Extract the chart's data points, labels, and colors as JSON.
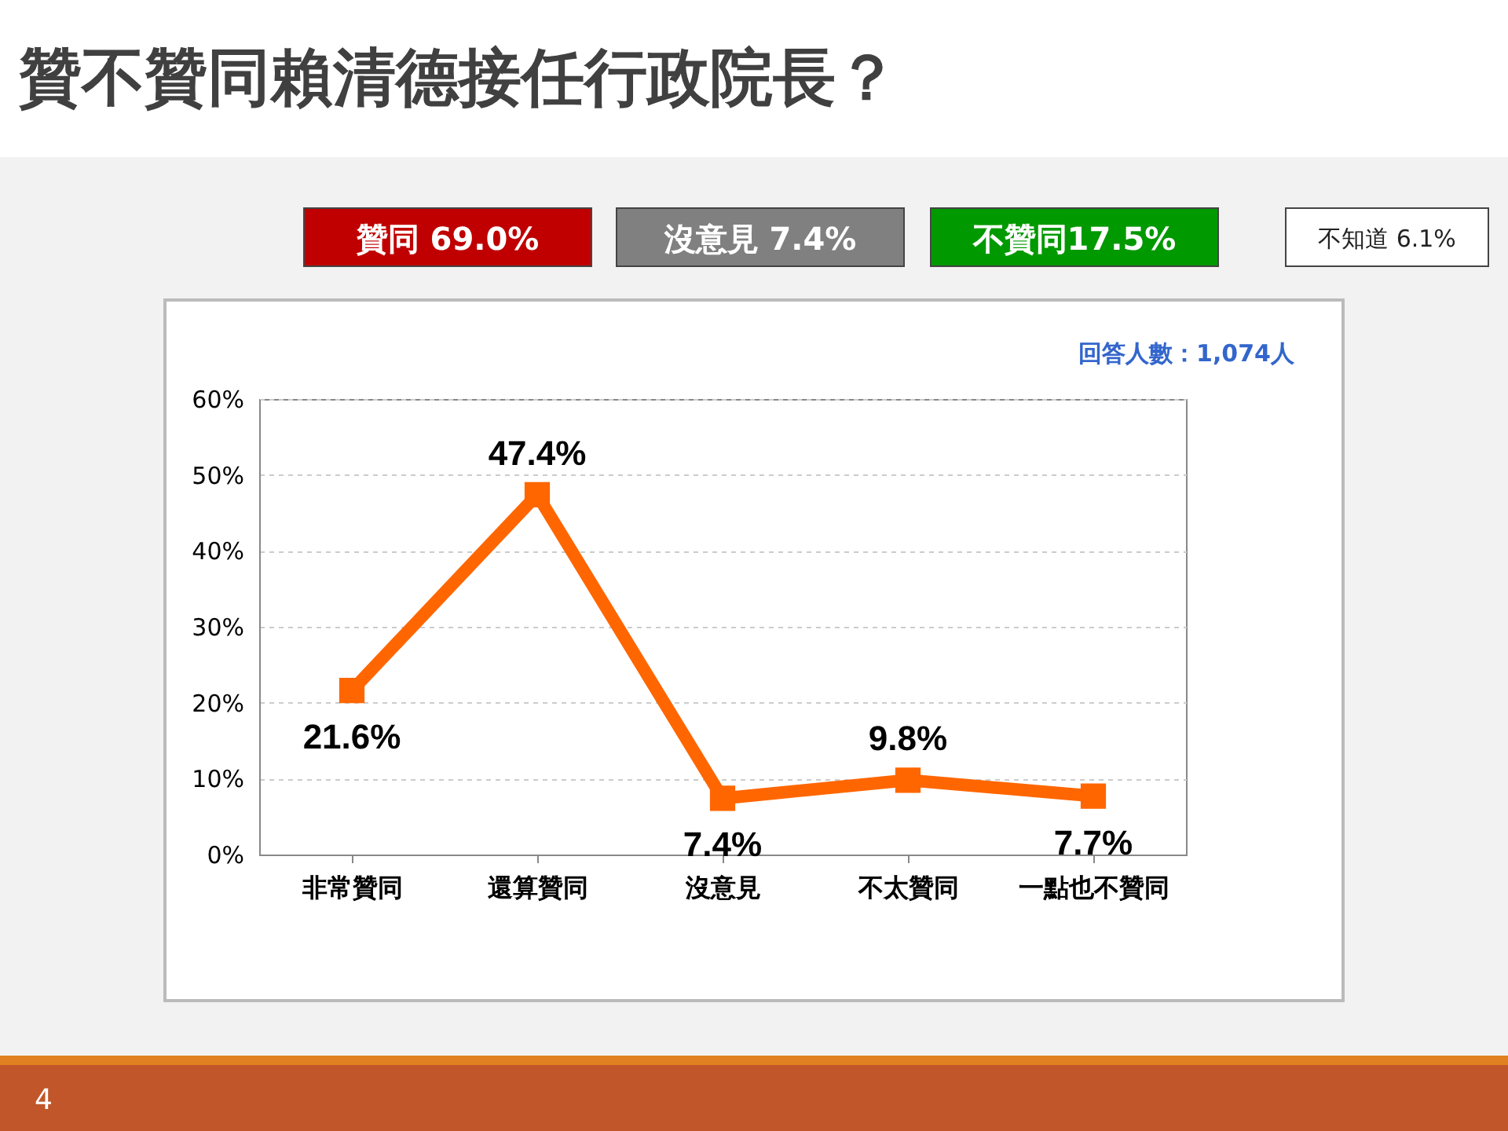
{
  "chart_data": {
    "type": "line",
    "title": "贊不贊同賴清德接任行政院長？",
    "categories": [
      "非常贊同",
      "還算贊同",
      "沒意見",
      "不太贊同",
      "一點也不贊同"
    ],
    "values": [
      21.6,
      47.4,
      7.4,
      9.8,
      7.7
    ],
    "value_labels": [
      "21.6%",
      "47.4%",
      "7.4%",
      "9.8%",
      "7.7%"
    ],
    "color": "#ff6600",
    "marker": "square",
    "line_style": "solid",
    "grid": "y",
    "ylim": [
      0,
      60
    ],
    "yticks": [
      {
        "value": 0,
        "label": "0%"
      },
      {
        "value": 10,
        "label": "10%"
      },
      {
        "value": 20,
        "label": "20%"
      },
      {
        "value": 30,
        "label": "30%"
      },
      {
        "value": 40,
        "label": "40%"
      },
      {
        "value": 50,
        "label": "50%"
      },
      {
        "value": 60,
        "label": "60%"
      }
    ],
    "annotations": [
      "贊同 69.0%",
      "沒意見 7.4%",
      "不贊同17.5%",
      "不知道 6.1%",
      "回答人數：1,074人",
      "4"
    ]
  }
}
